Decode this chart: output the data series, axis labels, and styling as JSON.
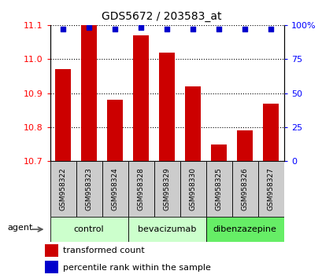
{
  "title": "GDS5672 / 203583_at",
  "samples": [
    "GSM958322",
    "GSM958323",
    "GSM958324",
    "GSM958328",
    "GSM958329",
    "GSM958330",
    "GSM958325",
    "GSM958326",
    "GSM958327"
  ],
  "transformed_counts": [
    10.97,
    11.1,
    10.88,
    11.07,
    11.02,
    10.92,
    10.75,
    10.79,
    10.87
  ],
  "percentile_ranks": [
    97,
    98,
    97,
    98,
    97,
    97,
    97,
    97,
    97
  ],
  "ylim_left": [
    10.7,
    11.1
  ],
  "ylim_right": [
    0,
    100
  ],
  "yticks_left": [
    10.7,
    10.8,
    10.9,
    11.0,
    11.1
  ],
  "yticks_right": [
    0,
    25,
    50,
    75,
    100
  ],
  "ytick_right_labels": [
    "0",
    "25",
    "50",
    "75",
    "100%"
  ],
  "bar_color": "#cc0000",
  "dot_color": "#0000cc",
  "groups": [
    {
      "label": "control",
      "start": 0,
      "end": 2,
      "color": "#ccffcc"
    },
    {
      "label": "bevacizumab",
      "start": 3,
      "end": 5,
      "color": "#ccffcc"
    },
    {
      "label": "dibenzazepine",
      "start": 6,
      "end": 8,
      "color": "#66ee66"
    }
  ],
  "agent_label": "agent",
  "legend_bar_label": "transformed count",
  "legend_dot_label": "percentile rank within the sample",
  "bar_width": 0.6,
  "baseline": 10.7,
  "sample_box_color": "#cccccc",
  "sample_box_edge": "#888888",
  "grid_color": "#888888"
}
